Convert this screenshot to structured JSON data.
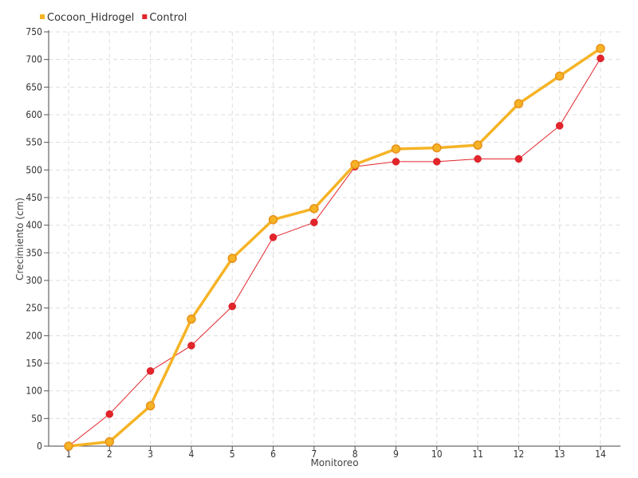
{
  "chart_data": {
    "type": "line",
    "title": "",
    "xlabel": "Monitoreo",
    "ylabel": "Crecimiento (cm)",
    "categories": [
      "1",
      "2",
      "3",
      "4",
      "5",
      "6",
      "7",
      "8",
      "9",
      "10",
      "11",
      "12",
      "13",
      "14"
    ],
    "ylim": [
      0,
      750
    ],
    "yticks": [
      0,
      50,
      100,
      150,
      200,
      250,
      300,
      350,
      400,
      450,
      500,
      550,
      600,
      650,
      700,
      750
    ],
    "grid": true,
    "legend_position": "top-left",
    "series": [
      {
        "name": "Cocoon_Hidrogel",
        "color": "#F5B325",
        "values": [
          0,
          8,
          73,
          230,
          340,
          410,
          430,
          510,
          538,
          540,
          545,
          620,
          670,
          720
        ]
      },
      {
        "name": "Control",
        "color": "#E3242B",
        "values": [
          0,
          58,
          136,
          182,
          253,
          378,
          405,
          506,
          515,
          515,
          520,
          520,
          580,
          702
        ]
      }
    ]
  }
}
